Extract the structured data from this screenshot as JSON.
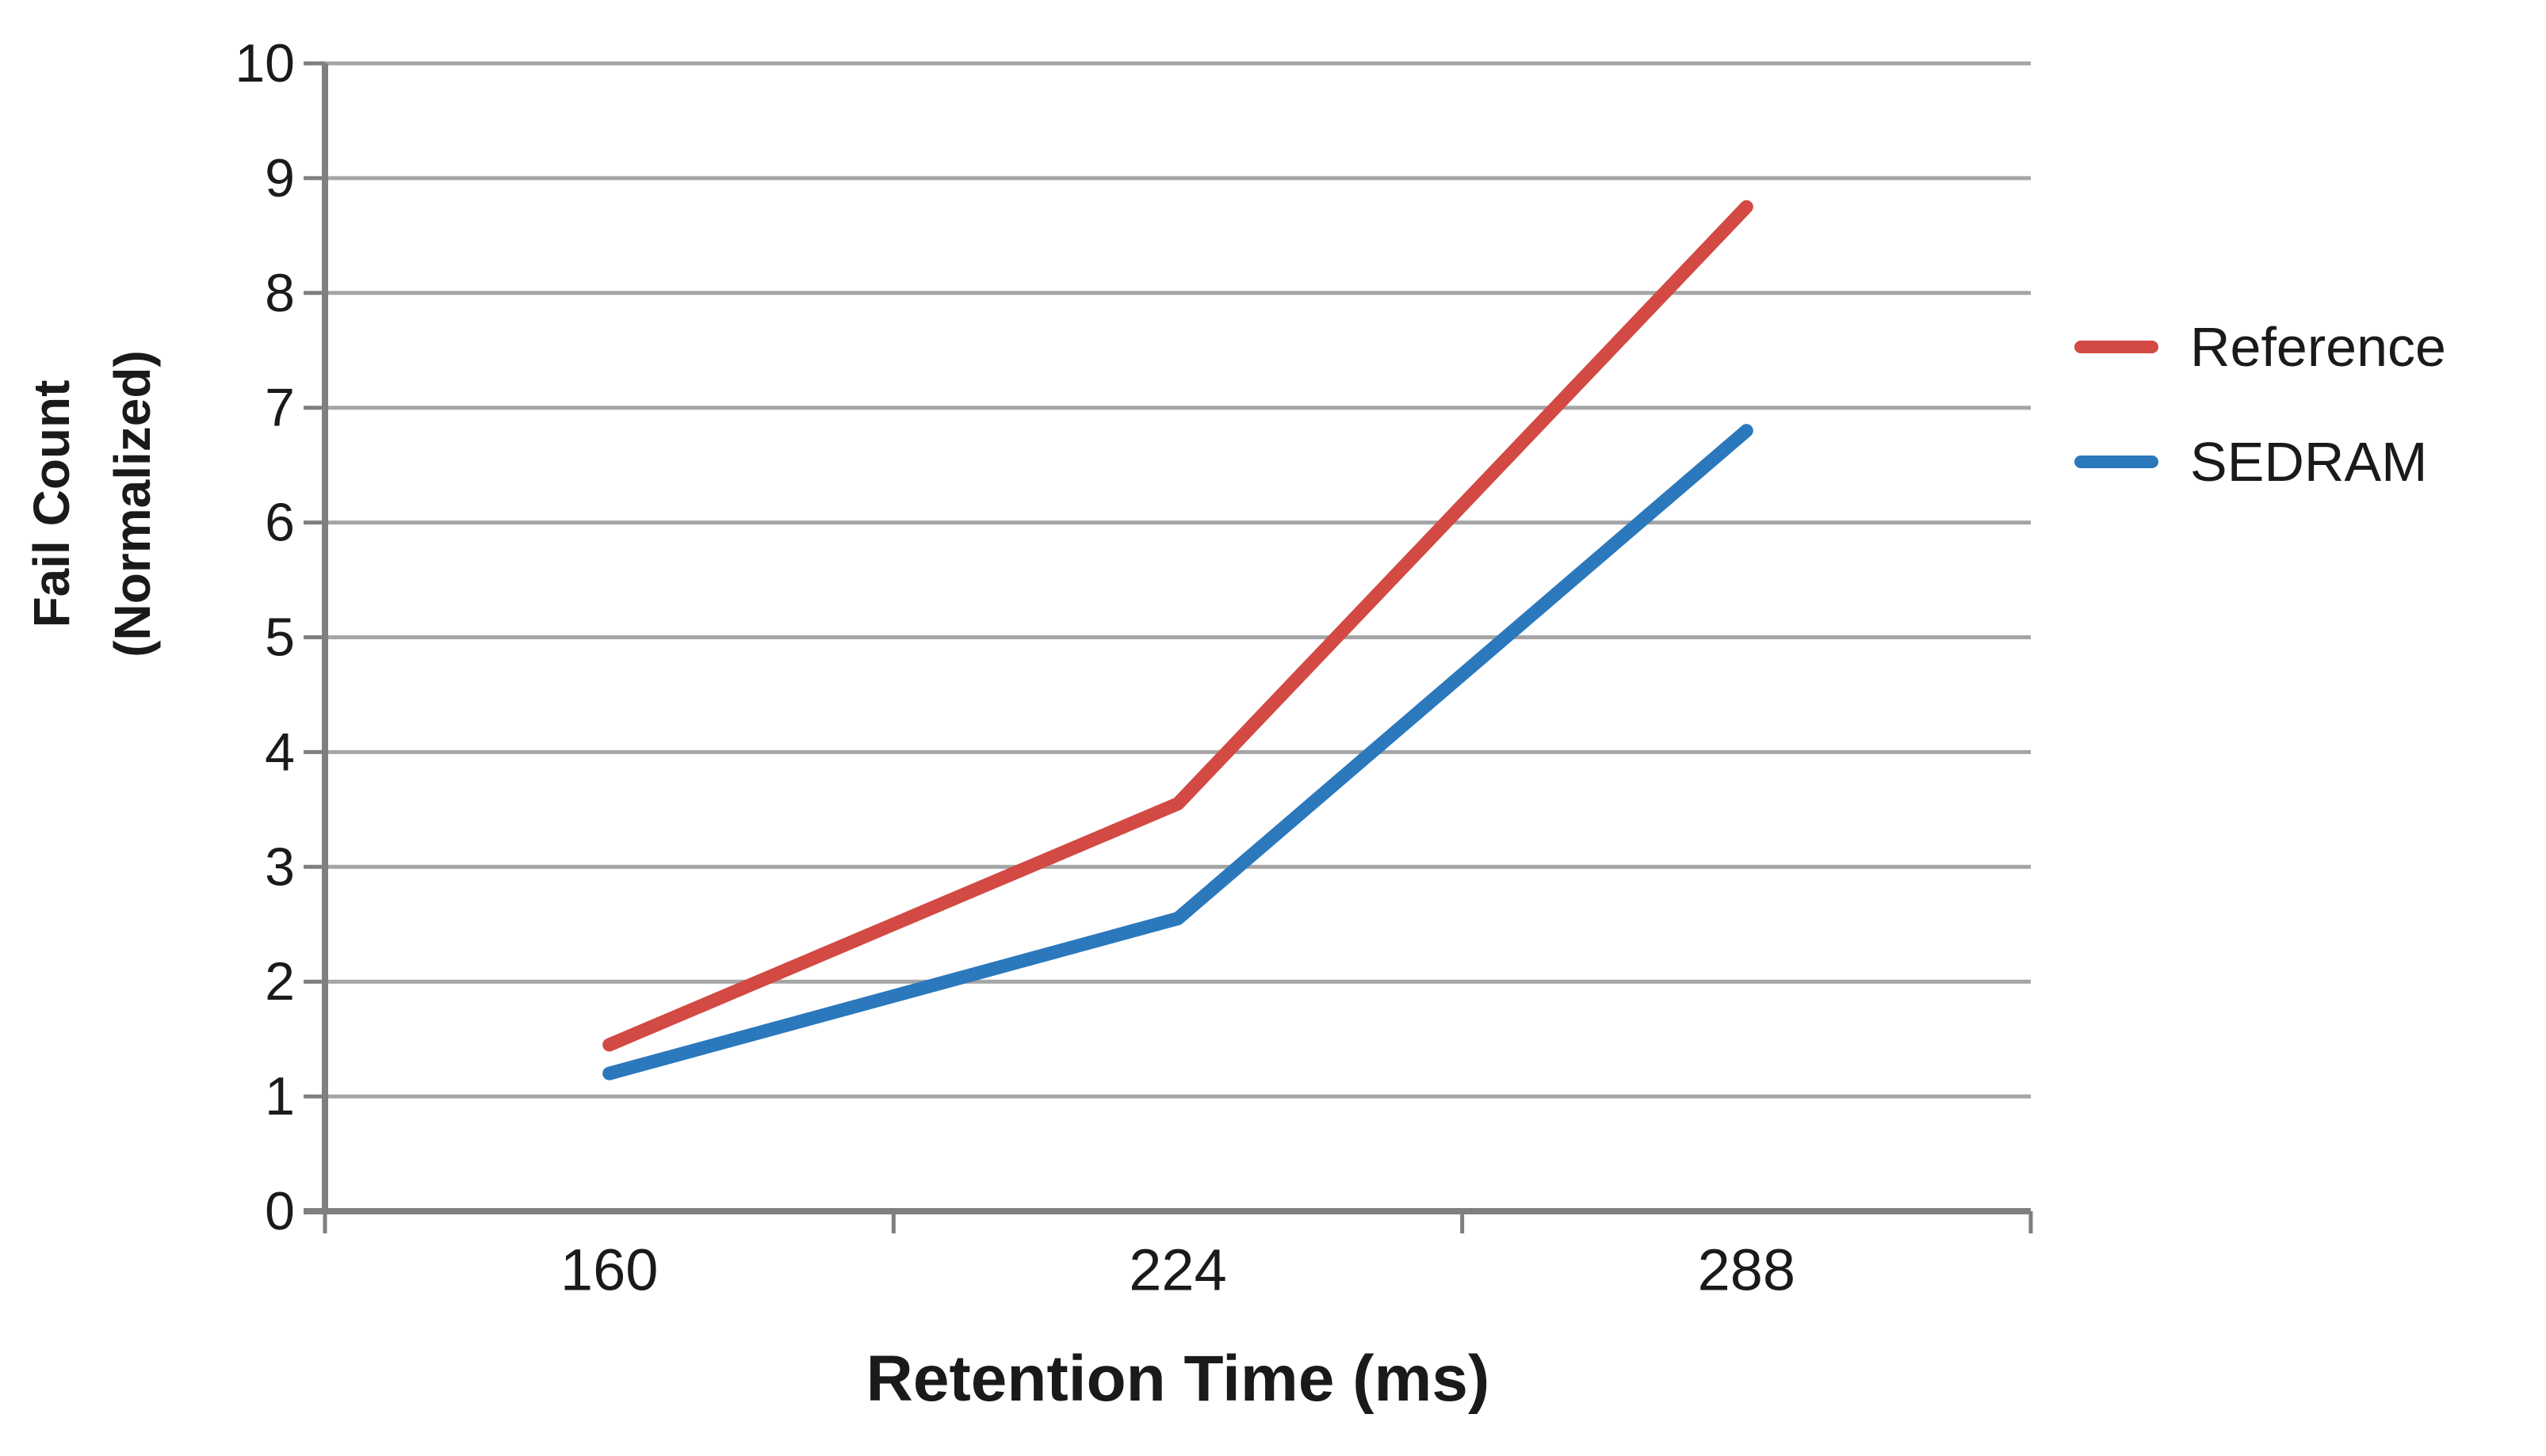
{
  "chart_data": {
    "type": "line",
    "title": "",
    "categories": [
      "160",
      "224",
      "288"
    ],
    "series": [
      {
        "name": "Reference",
        "color": "#d34943",
        "values": [
          1.45,
          3.55,
          8.75
        ]
      },
      {
        "name": "SEDRAM",
        "color": "#2b78bd",
        "values": [
          1.2,
          2.55,
          6.8
        ]
      }
    ],
    "xlabel": "Retention Time (ms)",
    "ylabel_line1": "Fail Count",
    "ylabel_line2": "(Normalized)",
    "ylim": [
      0,
      10
    ],
    "yticks": [
      0,
      1,
      2,
      3,
      4,
      5,
      6,
      7,
      8,
      9,
      10
    ],
    "grid": true,
    "legend_position": "right",
    "legend": [
      "Reference",
      "SEDRAM"
    ]
  },
  "colors": {
    "background": "#ffffff",
    "gridline": "#a5a5a5",
    "axis": "#7f7f7f",
    "text": "#1a1a1a"
  }
}
